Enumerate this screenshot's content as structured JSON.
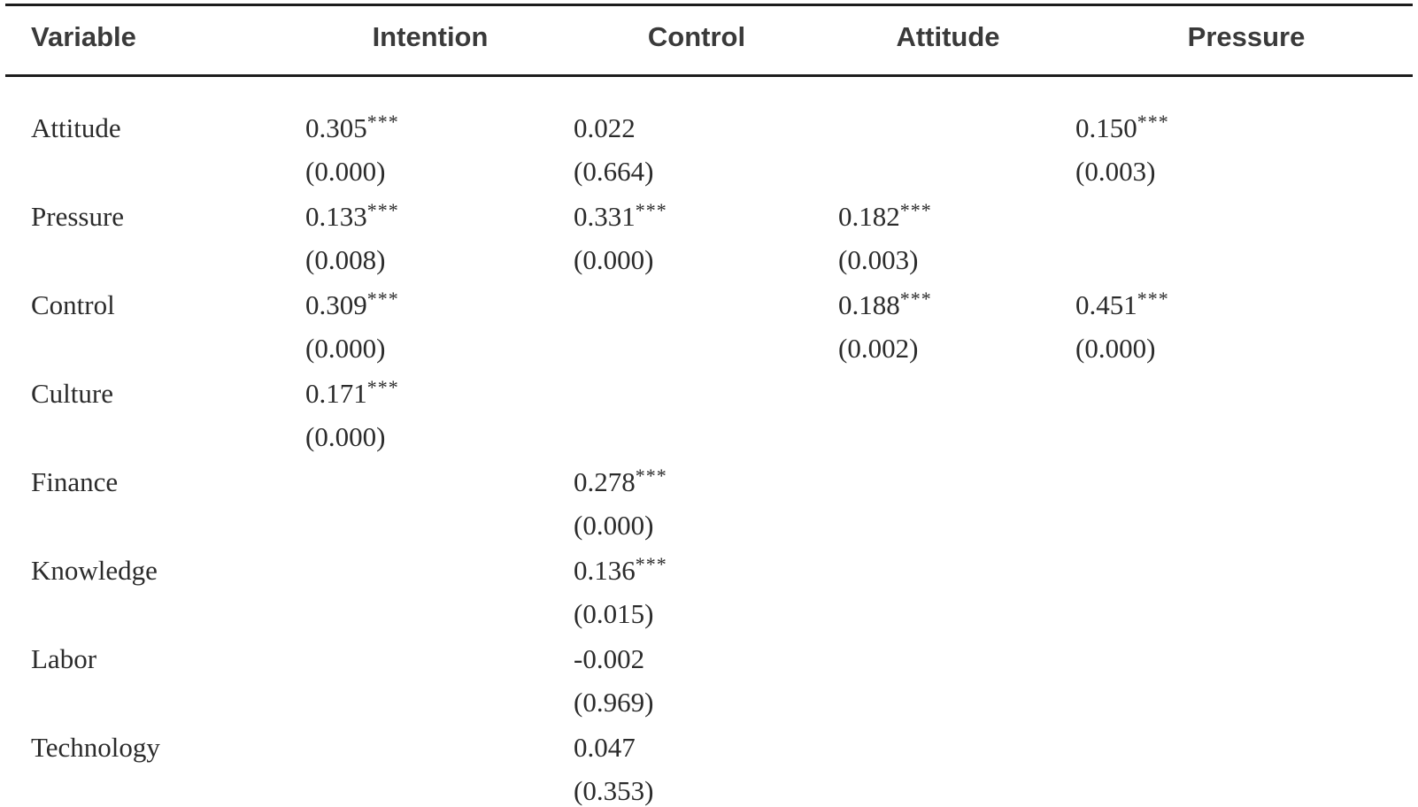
{
  "table": {
    "columns": [
      "Variable",
      "Intention",
      "Control",
      "Attitude",
      "Pressure"
    ],
    "rows": [
      {
        "variable": "Attitude",
        "cells": [
          {
            "est": "0.305",
            "stars": "***",
            "p": "(0.000)"
          },
          {
            "est": "0.022",
            "stars": "",
            "p": "(0.664)"
          },
          {
            "est": "",
            "stars": "",
            "p": ""
          },
          {
            "est": "0.150",
            "stars": "***",
            "p": "(0.003)"
          }
        ]
      },
      {
        "variable": "Pressure",
        "cells": [
          {
            "est": "0.133",
            "stars": "***",
            "p": "(0.008)"
          },
          {
            "est": "0.331",
            "stars": "***",
            "p": "(0.000)"
          },
          {
            "est": "0.182",
            "stars": "***",
            "p": "(0.003)"
          },
          {
            "est": "",
            "stars": "",
            "p": ""
          }
        ]
      },
      {
        "variable": "Control",
        "cells": [
          {
            "est": "0.309",
            "stars": "***",
            "p": "(0.000)"
          },
          {
            "est": "",
            "stars": "",
            "p": ""
          },
          {
            "est": "0.188",
            "stars": "***",
            "p": "(0.002)"
          },
          {
            "est": "0.451",
            "stars": "***",
            "p": "(0.000)"
          }
        ]
      },
      {
        "variable": "Culture",
        "cells": [
          {
            "est": "0.171",
            "stars": "***",
            "p": "(0.000)"
          },
          {
            "est": "",
            "stars": "",
            "p": ""
          },
          {
            "est": "",
            "stars": "",
            "p": ""
          },
          {
            "est": "",
            "stars": "",
            "p": ""
          }
        ]
      },
      {
        "variable": "Finance",
        "cells": [
          {
            "est": "",
            "stars": "",
            "p": ""
          },
          {
            "est": "0.278",
            "stars": "***",
            "p": "(0.000)"
          },
          {
            "est": "",
            "stars": "",
            "p": ""
          },
          {
            "est": "",
            "stars": "",
            "p": ""
          }
        ]
      },
      {
        "variable": "Knowledge",
        "cells": [
          {
            "est": "",
            "stars": "",
            "p": ""
          },
          {
            "est": "0.136",
            "stars": "***",
            "p": "(0.015)"
          },
          {
            "est": "",
            "stars": "",
            "p": ""
          },
          {
            "est": "",
            "stars": "",
            "p": ""
          }
        ]
      },
      {
        "variable": "Labor",
        "cells": [
          {
            "est": "",
            "stars": "",
            "p": ""
          },
          {
            "est": "-0.002",
            "stars": "",
            "p": "(0.969)"
          },
          {
            "est": "",
            "stars": "",
            "p": ""
          },
          {
            "est": "",
            "stars": "",
            "p": ""
          }
        ]
      },
      {
        "variable": "Technology",
        "cells": [
          {
            "est": "",
            "stars": "",
            "p": ""
          },
          {
            "est": "0.047",
            "stars": "",
            "p": "(0.353)"
          },
          {
            "est": "",
            "stars": "",
            "p": ""
          },
          {
            "est": "",
            "stars": "",
            "p": ""
          }
        ]
      }
    ]
  },
  "colors": {
    "rule": "#1c1c1c",
    "header_text": "#3a3a3a",
    "body_text": "#2b2b2b",
    "background": "#ffffff"
  }
}
